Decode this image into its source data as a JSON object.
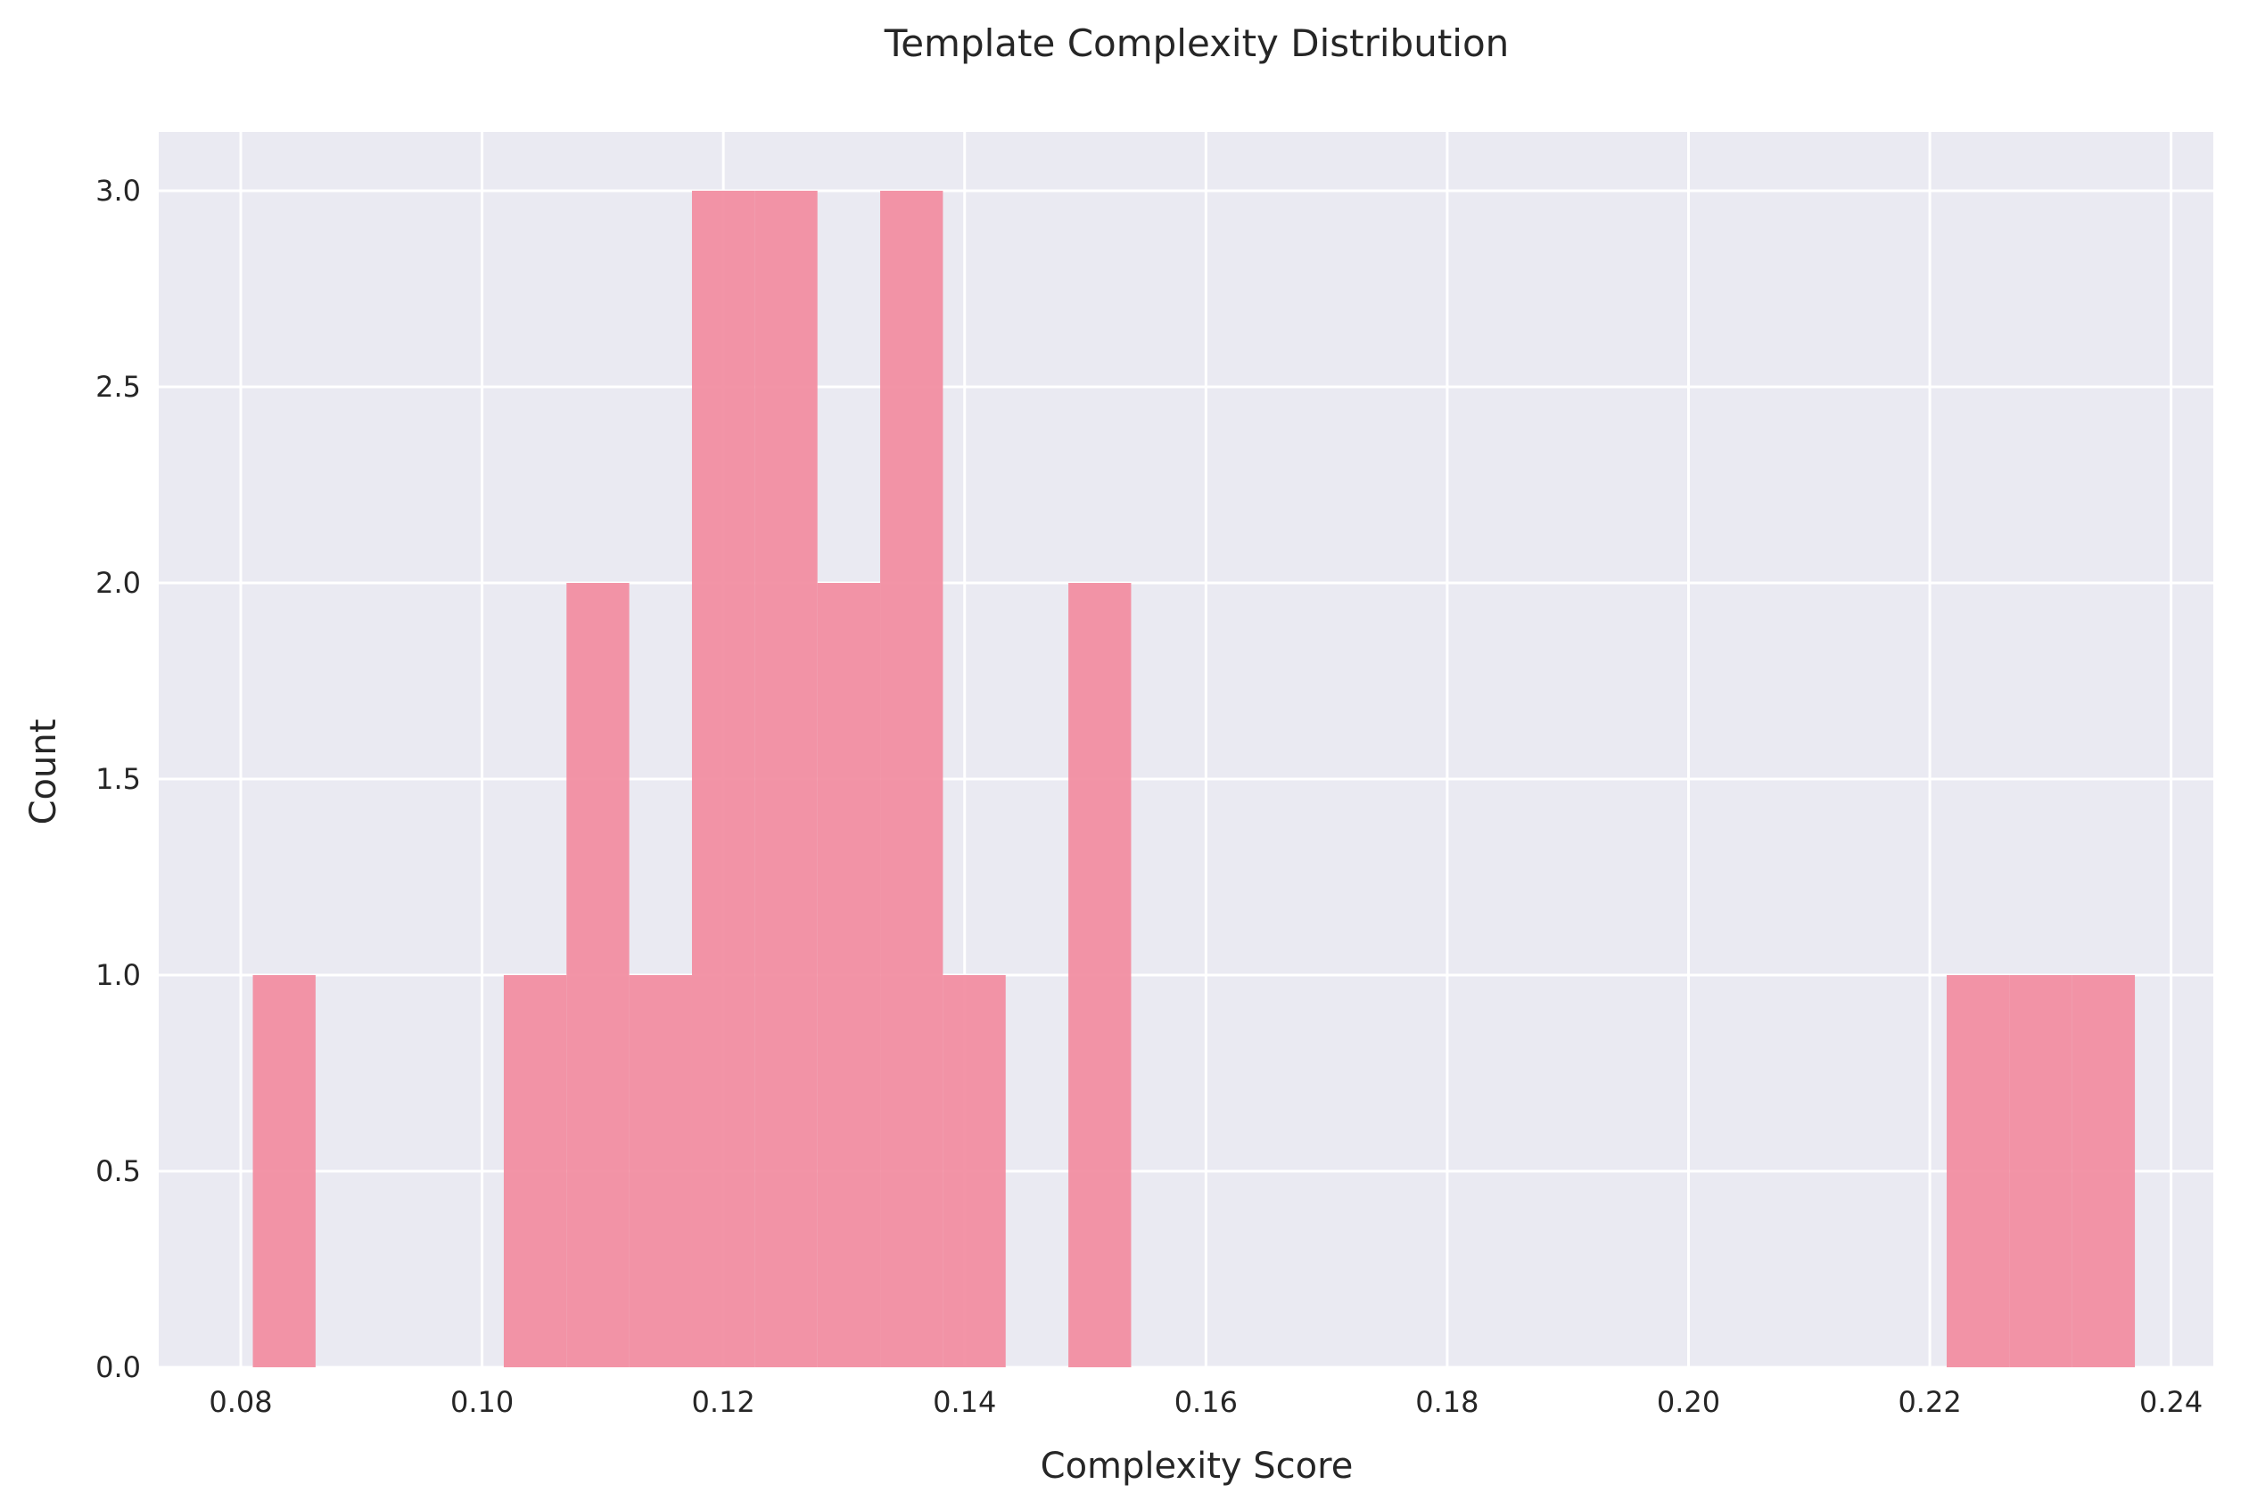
{
  "chart_data": {
    "type": "histogram",
    "title": "Template Complexity Distribution",
    "xlabel": "Complexity Score",
    "ylabel": "Count",
    "xlim": [
      0.0732,
      0.2435
    ],
    "ylim": [
      0,
      3.15
    ],
    "x_ticks": [
      0.08,
      0.1,
      0.12,
      0.14,
      0.16,
      0.18,
      0.2,
      0.22,
      0.24
    ],
    "x_tick_labels": [
      "0.08",
      "0.10",
      "0.12",
      "0.14",
      "0.16",
      "0.18",
      "0.20",
      "0.22",
      "0.24"
    ],
    "y_ticks": [
      0.0,
      0.5,
      1.0,
      1.5,
      2.0,
      2.5,
      3.0
    ],
    "y_tick_labels": [
      "0.0",
      "0.5",
      "1.0",
      "1.5",
      "2.0",
      "2.5",
      "3.0"
    ],
    "grid": true,
    "bar_color": "#f28ba0",
    "background_color": "#eaeaf2",
    "bins": [
      {
        "x0": 0.081,
        "x1": 0.0862,
        "count": 1
      },
      {
        "x0": 0.1018,
        "x1": 0.107,
        "count": 1
      },
      {
        "x0": 0.107,
        "x1": 0.1122,
        "count": 2
      },
      {
        "x0": 0.1122,
        "x1": 0.1174,
        "count": 1
      },
      {
        "x0": 0.1174,
        "x1": 0.1226,
        "count": 3
      },
      {
        "x0": 0.1226,
        "x1": 0.1278,
        "count": 3
      },
      {
        "x0": 0.1278,
        "x1": 0.133,
        "count": 2
      },
      {
        "x0": 0.133,
        "x1": 0.1382,
        "count": 3
      },
      {
        "x0": 0.1382,
        "x1": 0.1434,
        "count": 1
      },
      {
        "x0": 0.1486,
        "x1": 0.1538,
        "count": 2
      },
      {
        "x0": 0.2214,
        "x1": 0.2266,
        "count": 1
      },
      {
        "x0": 0.2266,
        "x1": 0.2318,
        "count": 1
      },
      {
        "x0": 0.2318,
        "x1": 0.237,
        "count": 1
      }
    ]
  }
}
